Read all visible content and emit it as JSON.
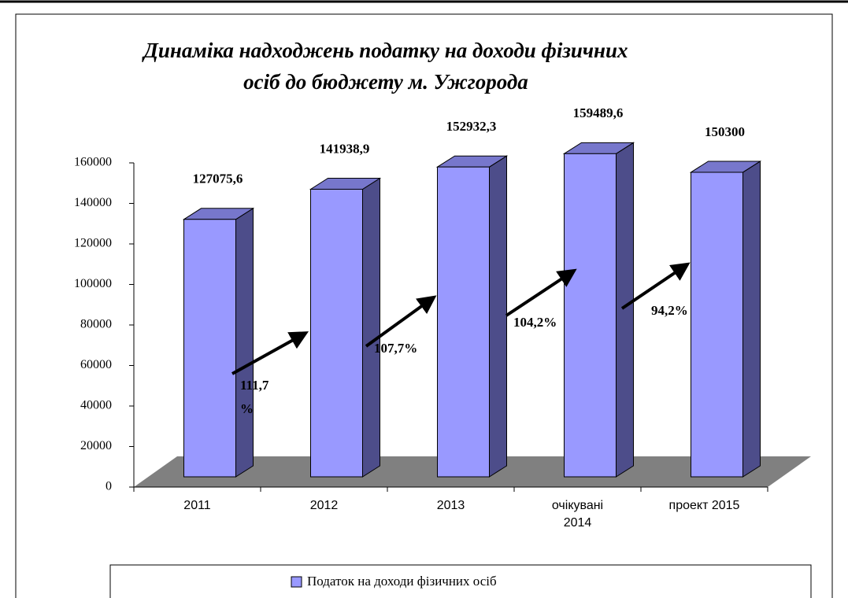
{
  "chart_data": {
    "type": "bar3d",
    "title": [
      "Динаміка надходжень податку на доходи фізичних",
      "осіб до бюджету м. Ужгорода"
    ],
    "categories": [
      "2011",
      "2012",
      "2013",
      "очікувані 2014",
      "проект 2015"
    ],
    "series": [
      {
        "name": "Податок на доходи фізичних осіб",
        "color": "#9999ff",
        "values": [
          127075.6,
          141938.9,
          152932.3,
          159489.6,
          150300
        ],
        "value_labels": [
          "127075,6",
          "141938,9",
          "152932,3",
          "159489,6",
          "150300"
        ]
      }
    ],
    "annotations": [
      "111,7 %",
      "107,7%",
      "104,2%",
      "94,2%"
    ],
    "ylim": [
      0,
      160000
    ],
    "yticks": [
      0,
      20000,
      40000,
      60000,
      80000,
      100000,
      120000,
      140000,
      160000
    ],
    "legend": "bottom"
  }
}
